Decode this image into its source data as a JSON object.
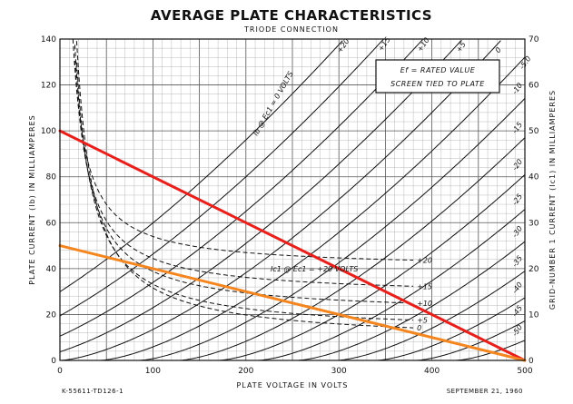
{
  "chart_data": {
    "type": "line",
    "title": "AVERAGE PLATE CHARACTERISTICS",
    "subtitle": "TRIODE CONNECTION",
    "xlabel": "PLATE VOLTAGE IN VOLTS",
    "ylabel": "PLATE CURRENT (Ib) IN MILLIAMPERES",
    "y2label": "GRID-NUMBER 1 CURRENT (Ic1) IN MILLIAMPERES",
    "xlim": [
      0,
      500
    ],
    "ylim": [
      0,
      140
    ],
    "y2lim": [
      0,
      70
    ],
    "xticks": [
      0,
      100,
      200,
      300,
      400,
      500
    ],
    "yticks": [
      0,
      20,
      40,
      60,
      80,
      100,
      120,
      140
    ],
    "y2ticks": [
      0,
      10,
      20,
      30,
      40,
      50,
      60,
      70
    ],
    "grid": true,
    "note_lines": [
      "Ef = RATED VALUE",
      "SCREEN TIED TO PLATE"
    ],
    "plate_curves_label": "Ib @ Ec1 = 0 VOLTS",
    "grid_current_label": "Ic1 @ Ec1 = +20 VOLTS",
    "plate_curves": [
      {
        "label": "+20",
        "bias": 20
      },
      {
        "label": "+15",
        "bias": 15
      },
      {
        "label": "+10",
        "bias": 10
      },
      {
        "label": "+5",
        "bias": 5
      },
      {
        "label": "0",
        "bias": 0
      },
      {
        "label": "-5.0",
        "bias": -5
      },
      {
        "label": "-10",
        "bias": -10
      },
      {
        "label": "-15",
        "bias": -15
      },
      {
        "label": "-20",
        "bias": -20
      },
      {
        "label": "-25",
        "bias": -25
      },
      {
        "label": "-30",
        "bias": -30
      },
      {
        "label": "-35",
        "bias": -35
      },
      {
        "label": "-40",
        "bias": -40
      },
      {
        "label": "-45",
        "bias": -45
      },
      {
        "label": "-50",
        "bias": -50
      }
    ],
    "grid_current_curves": [
      {
        "label": "+20",
        "asymptote": 20
      },
      {
        "label": "+15",
        "asymptote": 14
      },
      {
        "label": "+10",
        "asymptote": 10
      },
      {
        "label": "+5",
        "asymptote": 6
      },
      {
        "label": "0",
        "asymptote": 4
      }
    ],
    "load_lines": [
      {
        "color": "#e8201c",
        "x": [
          0,
          500
        ],
        "y": [
          100,
          0
        ]
      },
      {
        "color": "#f5861f",
        "x": [
          0,
          500
        ],
        "y": [
          50,
          0
        ]
      }
    ],
    "footer_left": "K-55611-TD126-1",
    "footer_right": "SEPTEMBER 21, 1960"
  }
}
